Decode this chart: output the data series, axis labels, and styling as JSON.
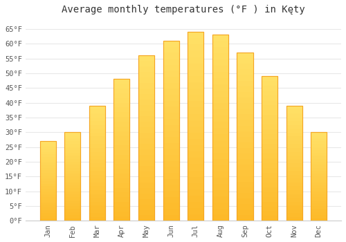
{
  "title": "Average monthly temperatures (°F ) in Kęty",
  "months": [
    "Jan",
    "Feb",
    "Mar",
    "Apr",
    "May",
    "Jun",
    "Jul",
    "Aug",
    "Sep",
    "Oct",
    "Nov",
    "Dec"
  ],
  "values": [
    27,
    30,
    39,
    48,
    56,
    61,
    64,
    63,
    57,
    49,
    39,
    30
  ],
  "bar_color": "#FDB827",
  "bar_edge_color": "#F5A623",
  "bar_top_color": "#FFD966",
  "background_color": "#ffffff",
  "plot_bg_color": "#ffffff",
  "grid_color": "#e8e8e8",
  "text_color": "#555555",
  "ylim": [
    0,
    68
  ],
  "yticks": [
    0,
    5,
    10,
    15,
    20,
    25,
    30,
    35,
    40,
    45,
    50,
    55,
    60,
    65
  ],
  "title_fontsize": 10,
  "tick_fontsize": 7.5,
  "figsize": [
    5.0,
    3.5
  ],
  "dpi": 100
}
